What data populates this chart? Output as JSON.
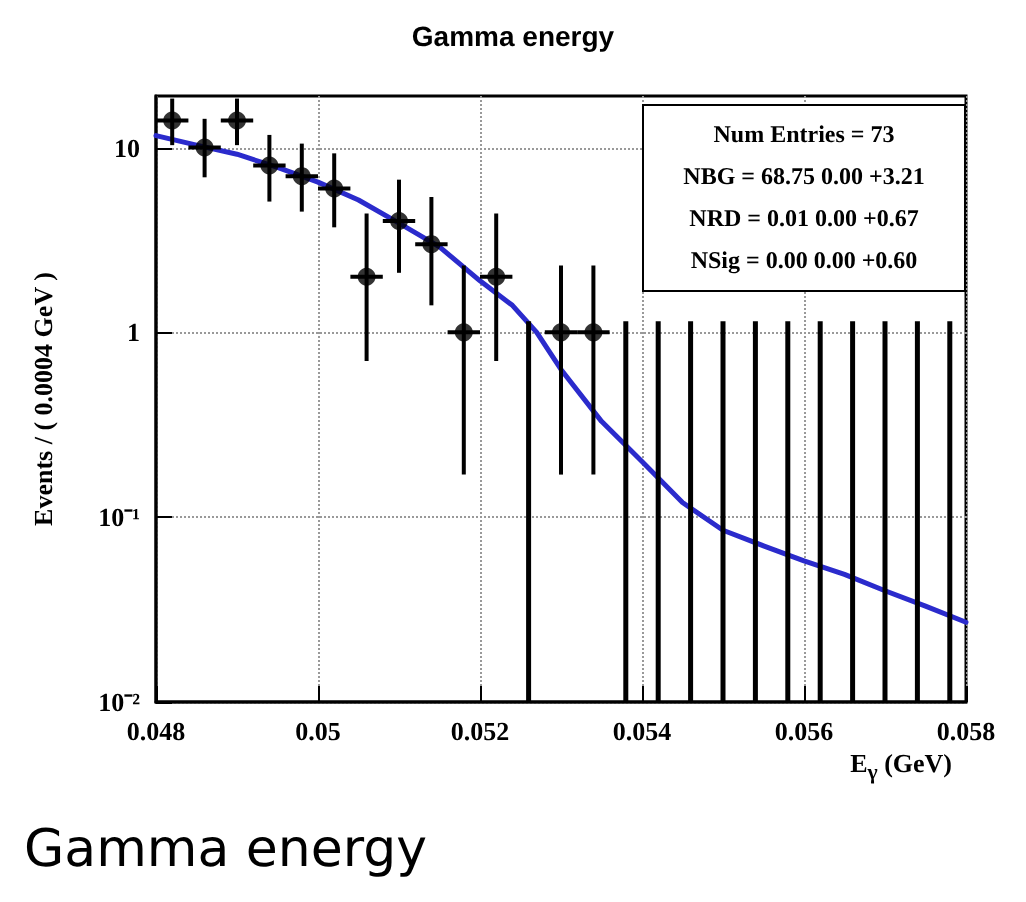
{
  "chart_data": {
    "type": "scatter",
    "title": "Gamma energy",
    "xlabel": "E$_{γ}$ (GeV)",
    "ylabel": "Events / ( 0.0004 GeV )",
    "log": "y",
    "grid": true,
    "marker": "circle",
    "xlim": [
      0.048,
      0.058
    ],
    "xticks": [
      0.048,
      0.05,
      0.052,
      0.054,
      0.056,
      0.058
    ],
    "ylim": [
      0.01,
      19
    ],
    "yticks": [
      {
        "value": 0.01,
        "label": "10⁻²"
      },
      {
        "value": 0.1,
        "label": "10⁻¹"
      },
      1,
      10
    ],
    "annotations": [
      "Num Entries = 73",
      "NBG = 68.75 0.00 +3.21",
      "NRD = 0.01 0.00 +0.67",
      "NSig = 0.00 0.00 +0.60",
      "Gamma energy"
    ],
    "series": [
      {
        "color": "#000000",
        "x": [
          0.0482,
          0.0486,
          0.049,
          0.0494,
          0.0498,
          0.0502,
          0.0506,
          0.051,
          0.0514,
          0.0518,
          0.0522,
          0.053,
          0.0534
        ],
        "values": [
          14,
          10,
          14,
          8,
          7,
          6,
          2,
          4,
          3,
          1,
          2,
          1,
          1
        ],
        "errors": [
          [
            10.3,
            18.4
          ],
          [
            6.9,
            14.3
          ],
          [
            10.3,
            18.4
          ],
          [
            5.1,
            11.7
          ],
          [
            4.5,
            10.5
          ],
          [
            3.7,
            9.3
          ],
          [
            0.7,
            4.4
          ],
          [
            2.1,
            6.7
          ],
          [
            1.4,
            5.4
          ],
          [
            0.17,
            2.3
          ],
          [
            0.7,
            4.4
          ],
          [
            0.17,
            2.3
          ],
          [
            0.17,
            2.3
          ]
        ],
        "xerrors": [
          0.0002,
          0.0002,
          0.0002,
          0.0002,
          0.0002,
          0.0002,
          0.0002,
          0.0002,
          0.0002,
          0.0002,
          0.0002,
          0.0002,
          0.0002
        ]
      },
      {
        "type": "bar",
        "color": "#000000",
        "x": [
          0.0526,
          0.0538,
          0.0542,
          0.0546,
          0.055,
          0.0554,
          0.0558,
          0.0562,
          0.0566,
          0.057,
          0.0574,
          0.0578
        ],
        "base": [
          0.01,
          0.01,
          0.01,
          0.01,
          0.01,
          0.01,
          0.01,
          0.01,
          0.01,
          0.01,
          0.01,
          0.01
        ],
        "values": [
          1.14,
          1.14,
          1.14,
          1.14,
          1.14,
          1.14,
          1.14,
          1.14,
          1.14,
          1.14,
          1.14,
          1.14
        ]
      },
      {
        "type": "line",
        "color": "#2b2bcc",
        "marker": "none",
        "x": [
          0.048,
          0.0485,
          0.049,
          0.0495,
          0.05,
          0.0505,
          0.051,
          0.0515,
          0.052,
          0.0524,
          0.0527,
          0.053,
          0.0535,
          0.054,
          0.0545,
          0.055,
          0.0555,
          0.056,
          0.0565,
          0.057,
          0.0575,
          0.058
        ],
        "values": [
          11.6,
          10.3,
          9.2,
          7.8,
          6.5,
          5.2,
          3.9,
          2.9,
          1.9,
          1.4,
          1.0,
          0.63,
          0.33,
          0.2,
          0.12,
          0.085,
          0.07,
          0.058,
          0.049,
          0.04,
          0.033,
          0.027
        ]
      }
    ]
  }
}
